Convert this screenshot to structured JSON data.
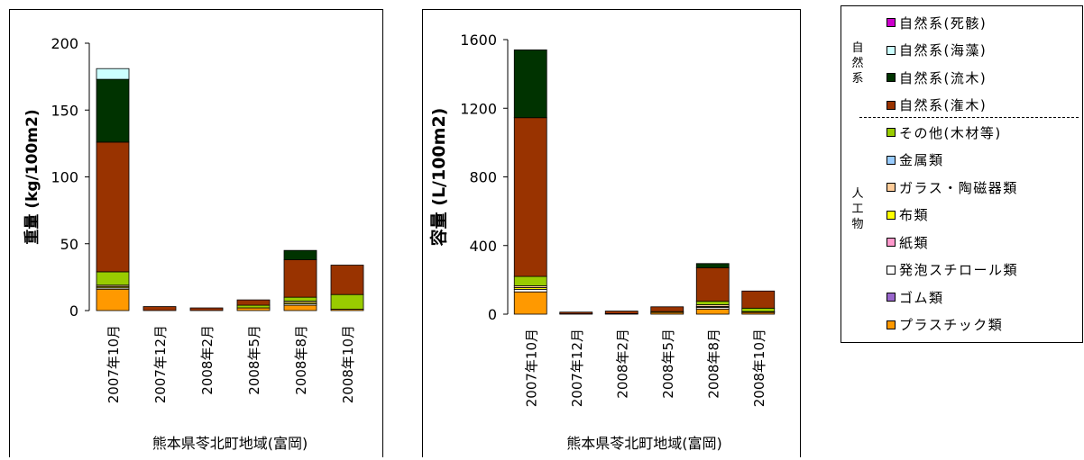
{
  "chart_data": [
    {
      "type": "bar",
      "stacked": true,
      "xlabel": "熊本県苓北町地域(富岡)",
      "ylabel": "重量 (kg/100m2)",
      "ylim": [
        0,
        200
      ],
      "yticks": [
        "0",
        "50",
        "100",
        "150",
        "200"
      ],
      "grid": false,
      "categories": [
        "2007年10月",
        "2007年12月",
        "2008年2月",
        "2008年5月",
        "2008年8月",
        "2008年10月"
      ],
      "series": [
        {
          "name": "プラスチック類",
          "color": "#ff9900",
          "values": [
            16,
            0,
            0,
            2,
            4,
            1
          ]
        },
        {
          "name": "ゴム類",
          "color": "#9966cc",
          "values": [
            0,
            0,
            0,
            0,
            0,
            0
          ]
        },
        {
          "name": "発泡スチロール類",
          "color": "#ffffff",
          "values": [
            1,
            0,
            0,
            0,
            1,
            0
          ]
        },
        {
          "name": "紙類",
          "color": "#ff99cc",
          "values": [
            0,
            0,
            0,
            0,
            0,
            0
          ]
        },
        {
          "name": "布類",
          "color": "#ffff00",
          "values": [
            1,
            0,
            0,
            0,
            1,
            0
          ]
        },
        {
          "name": "ガラス・陶磁器類",
          "color": "#ffcc99",
          "values": [
            1,
            0,
            0,
            0,
            1,
            0
          ]
        },
        {
          "name": "金属類",
          "color": "#99ccff",
          "values": [
            0,
            0,
            0,
            0,
            0,
            0
          ]
        },
        {
          "name": "その他(木材等)",
          "color": "#99cc00",
          "values": [
            10,
            0,
            0,
            2,
            3,
            11
          ]
        },
        {
          "name": "自然系(潅木)",
          "color": "#993300",
          "values": [
            97,
            3,
            2,
            4,
            28,
            22
          ]
        },
        {
          "name": "自然系(流木)",
          "color": "#003300",
          "values": [
            47,
            0,
            0,
            0,
            7,
            0
          ]
        },
        {
          "name": "自然系(海藻)",
          "color": "#ccffff",
          "values": [
            8,
            0,
            0,
            0,
            0,
            0
          ]
        },
        {
          "name": "自然系(死骸)",
          "color": "#cc00cc",
          "values": [
            0,
            0,
            0,
            0,
            0,
            0
          ]
        }
      ]
    },
    {
      "type": "bar",
      "stacked": true,
      "xlabel": "熊本県苓北町地域(富岡)",
      "ylabel": "容量 (L/100m2)",
      "ylim": [
        0,
        1600
      ],
      "yticks": [
        "0",
        "400",
        "800",
        "1200",
        "1600"
      ],
      "grid": false,
      "categories": [
        "2007年10月",
        "2007年12月",
        "2008年2月",
        "2008年5月",
        "2008年8月",
        "2008年10月"
      ],
      "series": [
        {
          "name": "プラスチック類",
          "color": "#ff9900",
          "values": [
            130,
            2,
            3,
            10,
            30,
            10
          ]
        },
        {
          "name": "ゴム類",
          "color": "#9966cc",
          "values": [
            0,
            0,
            0,
            0,
            0,
            0
          ]
        },
        {
          "name": "発泡スチロール類",
          "color": "#ffffff",
          "values": [
            15,
            0,
            0,
            0,
            10,
            3
          ]
        },
        {
          "name": "紙類",
          "color": "#ff99cc",
          "values": [
            0,
            0,
            0,
            0,
            0,
            0
          ]
        },
        {
          "name": "布類",
          "color": "#ffff00",
          "values": [
            10,
            0,
            0,
            0,
            5,
            2
          ]
        },
        {
          "name": "ガラス・陶磁器類",
          "color": "#ffcc99",
          "values": [
            10,
            0,
            0,
            0,
            10,
            0
          ]
        },
        {
          "name": "金属類",
          "color": "#99ccff",
          "values": [
            0,
            0,
            0,
            0,
            0,
            0
          ]
        },
        {
          "name": "その他(木材等)",
          "color": "#99cc00",
          "values": [
            55,
            0,
            0,
            5,
            20,
            20
          ]
        },
        {
          "name": "自然系(潅木)",
          "color": "#993300",
          "values": [
            925,
            10,
            15,
            28,
            195,
            100
          ]
        },
        {
          "name": "自然系(流木)",
          "color": "#003300",
          "values": [
            395,
            0,
            0,
            0,
            25,
            0
          ]
        },
        {
          "name": "自然系(海藻)",
          "color": "#ccffff",
          "values": [
            0,
            0,
            0,
            0,
            0,
            0
          ]
        },
        {
          "name": "自然系(死骸)",
          "color": "#cc00cc",
          "values": [
            0,
            0,
            0,
            0,
            0,
            0
          ]
        }
      ]
    }
  ],
  "legend": {
    "natural_group_label": "自然系",
    "artificial_group_label": "人工物",
    "items": [
      {
        "label": "自然系(死骸)",
        "color": "#cc00cc"
      },
      {
        "label": "自然系(海藻)",
        "color": "#ccffff"
      },
      {
        "label": "自然系(流木)",
        "color": "#003300"
      },
      {
        "label": "自然系(潅木)",
        "color": "#993300"
      },
      {
        "label": "その他(木材等)",
        "color": "#99cc00"
      },
      {
        "label": "金属類",
        "color": "#99ccff"
      },
      {
        "label": "ガラス・陶磁器類",
        "color": "#ffcc99"
      },
      {
        "label": "布類",
        "color": "#ffff00"
      },
      {
        "label": "紙類",
        "color": "#ff99cc"
      },
      {
        "label": "発泡スチロール類",
        "color": "#ffffff"
      },
      {
        "label": "ゴム類",
        "color": "#9966cc"
      },
      {
        "label": "プラスチック類",
        "color": "#ff9900"
      }
    ]
  }
}
